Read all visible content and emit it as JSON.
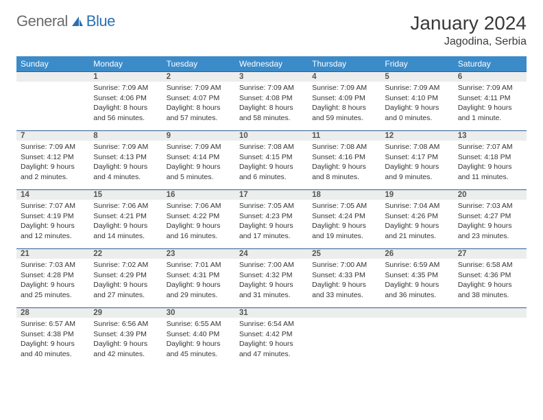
{
  "brand": {
    "part1": "General",
    "part2": "Blue"
  },
  "title": {
    "month": "January 2024",
    "location": "Jagodina, Serbia"
  },
  "colors": {
    "header_bg": "#3b8bc9",
    "header_text": "#ffffff",
    "daynum_bg": "#eceded",
    "daynum_border": "#2e5e8f"
  },
  "days_of_week": [
    "Sunday",
    "Monday",
    "Tuesday",
    "Wednesday",
    "Thursday",
    "Friday",
    "Saturday"
  ],
  "weeks": [
    [
      null,
      {
        "n": "1",
        "sunrise": "Sunrise: 7:09 AM",
        "sunset": "Sunset: 4:06 PM",
        "dl1": "Daylight: 8 hours",
        "dl2": "and 56 minutes."
      },
      {
        "n": "2",
        "sunrise": "Sunrise: 7:09 AM",
        "sunset": "Sunset: 4:07 PM",
        "dl1": "Daylight: 8 hours",
        "dl2": "and 57 minutes."
      },
      {
        "n": "3",
        "sunrise": "Sunrise: 7:09 AM",
        "sunset": "Sunset: 4:08 PM",
        "dl1": "Daylight: 8 hours",
        "dl2": "and 58 minutes."
      },
      {
        "n": "4",
        "sunrise": "Sunrise: 7:09 AM",
        "sunset": "Sunset: 4:09 PM",
        "dl1": "Daylight: 8 hours",
        "dl2": "and 59 minutes."
      },
      {
        "n": "5",
        "sunrise": "Sunrise: 7:09 AM",
        "sunset": "Sunset: 4:10 PM",
        "dl1": "Daylight: 9 hours",
        "dl2": "and 0 minutes."
      },
      {
        "n": "6",
        "sunrise": "Sunrise: 7:09 AM",
        "sunset": "Sunset: 4:11 PM",
        "dl1": "Daylight: 9 hours",
        "dl2": "and 1 minute."
      }
    ],
    [
      {
        "n": "7",
        "sunrise": "Sunrise: 7:09 AM",
        "sunset": "Sunset: 4:12 PM",
        "dl1": "Daylight: 9 hours",
        "dl2": "and 2 minutes."
      },
      {
        "n": "8",
        "sunrise": "Sunrise: 7:09 AM",
        "sunset": "Sunset: 4:13 PM",
        "dl1": "Daylight: 9 hours",
        "dl2": "and 4 minutes."
      },
      {
        "n": "9",
        "sunrise": "Sunrise: 7:09 AM",
        "sunset": "Sunset: 4:14 PM",
        "dl1": "Daylight: 9 hours",
        "dl2": "and 5 minutes."
      },
      {
        "n": "10",
        "sunrise": "Sunrise: 7:08 AM",
        "sunset": "Sunset: 4:15 PM",
        "dl1": "Daylight: 9 hours",
        "dl2": "and 6 minutes."
      },
      {
        "n": "11",
        "sunrise": "Sunrise: 7:08 AM",
        "sunset": "Sunset: 4:16 PM",
        "dl1": "Daylight: 9 hours",
        "dl2": "and 8 minutes."
      },
      {
        "n": "12",
        "sunrise": "Sunrise: 7:08 AM",
        "sunset": "Sunset: 4:17 PM",
        "dl1": "Daylight: 9 hours",
        "dl2": "and 9 minutes."
      },
      {
        "n": "13",
        "sunrise": "Sunrise: 7:07 AM",
        "sunset": "Sunset: 4:18 PM",
        "dl1": "Daylight: 9 hours",
        "dl2": "and 11 minutes."
      }
    ],
    [
      {
        "n": "14",
        "sunrise": "Sunrise: 7:07 AM",
        "sunset": "Sunset: 4:19 PM",
        "dl1": "Daylight: 9 hours",
        "dl2": "and 12 minutes."
      },
      {
        "n": "15",
        "sunrise": "Sunrise: 7:06 AM",
        "sunset": "Sunset: 4:21 PM",
        "dl1": "Daylight: 9 hours",
        "dl2": "and 14 minutes."
      },
      {
        "n": "16",
        "sunrise": "Sunrise: 7:06 AM",
        "sunset": "Sunset: 4:22 PM",
        "dl1": "Daylight: 9 hours",
        "dl2": "and 16 minutes."
      },
      {
        "n": "17",
        "sunrise": "Sunrise: 7:05 AM",
        "sunset": "Sunset: 4:23 PM",
        "dl1": "Daylight: 9 hours",
        "dl2": "and 17 minutes."
      },
      {
        "n": "18",
        "sunrise": "Sunrise: 7:05 AM",
        "sunset": "Sunset: 4:24 PM",
        "dl1": "Daylight: 9 hours",
        "dl2": "and 19 minutes."
      },
      {
        "n": "19",
        "sunrise": "Sunrise: 7:04 AM",
        "sunset": "Sunset: 4:26 PM",
        "dl1": "Daylight: 9 hours",
        "dl2": "and 21 minutes."
      },
      {
        "n": "20",
        "sunrise": "Sunrise: 7:03 AM",
        "sunset": "Sunset: 4:27 PM",
        "dl1": "Daylight: 9 hours",
        "dl2": "and 23 minutes."
      }
    ],
    [
      {
        "n": "21",
        "sunrise": "Sunrise: 7:03 AM",
        "sunset": "Sunset: 4:28 PM",
        "dl1": "Daylight: 9 hours",
        "dl2": "and 25 minutes."
      },
      {
        "n": "22",
        "sunrise": "Sunrise: 7:02 AM",
        "sunset": "Sunset: 4:29 PM",
        "dl1": "Daylight: 9 hours",
        "dl2": "and 27 minutes."
      },
      {
        "n": "23",
        "sunrise": "Sunrise: 7:01 AM",
        "sunset": "Sunset: 4:31 PM",
        "dl1": "Daylight: 9 hours",
        "dl2": "and 29 minutes."
      },
      {
        "n": "24",
        "sunrise": "Sunrise: 7:00 AM",
        "sunset": "Sunset: 4:32 PM",
        "dl1": "Daylight: 9 hours",
        "dl2": "and 31 minutes."
      },
      {
        "n": "25",
        "sunrise": "Sunrise: 7:00 AM",
        "sunset": "Sunset: 4:33 PM",
        "dl1": "Daylight: 9 hours",
        "dl2": "and 33 minutes."
      },
      {
        "n": "26",
        "sunrise": "Sunrise: 6:59 AM",
        "sunset": "Sunset: 4:35 PM",
        "dl1": "Daylight: 9 hours",
        "dl2": "and 36 minutes."
      },
      {
        "n": "27",
        "sunrise": "Sunrise: 6:58 AM",
        "sunset": "Sunset: 4:36 PM",
        "dl1": "Daylight: 9 hours",
        "dl2": "and 38 minutes."
      }
    ],
    [
      {
        "n": "28",
        "sunrise": "Sunrise: 6:57 AM",
        "sunset": "Sunset: 4:38 PM",
        "dl1": "Daylight: 9 hours",
        "dl2": "and 40 minutes."
      },
      {
        "n": "29",
        "sunrise": "Sunrise: 6:56 AM",
        "sunset": "Sunset: 4:39 PM",
        "dl1": "Daylight: 9 hours",
        "dl2": "and 42 minutes."
      },
      {
        "n": "30",
        "sunrise": "Sunrise: 6:55 AM",
        "sunset": "Sunset: 4:40 PM",
        "dl1": "Daylight: 9 hours",
        "dl2": "and 45 minutes."
      },
      {
        "n": "31",
        "sunrise": "Sunrise: 6:54 AM",
        "sunset": "Sunset: 4:42 PM",
        "dl1": "Daylight: 9 hours",
        "dl2": "and 47 minutes."
      },
      null,
      null,
      null
    ]
  ]
}
